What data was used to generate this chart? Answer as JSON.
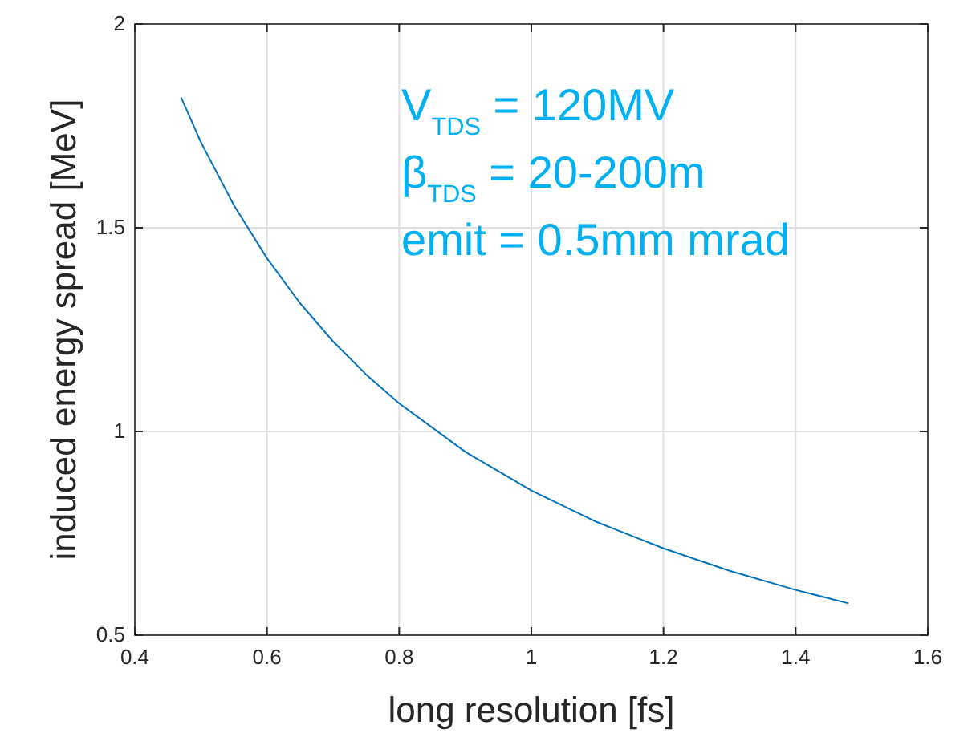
{
  "chart_data": {
    "type": "line",
    "xlabel": "long resolution [fs]",
    "ylabel": "induced energy spread [MeV]",
    "x": [
      0.47,
      0.5,
      0.55,
      0.6,
      0.65,
      0.7,
      0.75,
      0.8,
      0.9,
      1.0,
      1.1,
      1.2,
      1.3,
      1.4,
      1.48
    ],
    "series": [
      {
        "color": "#0072bd",
        "values": [
          1.82,
          1.71,
          1.555,
          1.425,
          1.315,
          1.221,
          1.14,
          1.069,
          0.95,
          0.855,
          0.777,
          0.713,
          0.658,
          0.611,
          0.578
        ]
      }
    ],
    "xlim": [
      0.4,
      1.6
    ],
    "xticks": [
      0.4,
      0.6,
      0.8,
      1,
      1.2,
      1.4,
      1.6
    ],
    "ylim": [
      0.5,
      2
    ],
    "yticks": [
      0.5,
      1,
      1.5,
      2
    ],
    "grid": true,
    "annotations": [
      "V$_{TDS}$ = 120MV",
      "β$_{TDS}$ = 20-200m",
      "emit = 0.5mm mrad"
    ]
  }
}
